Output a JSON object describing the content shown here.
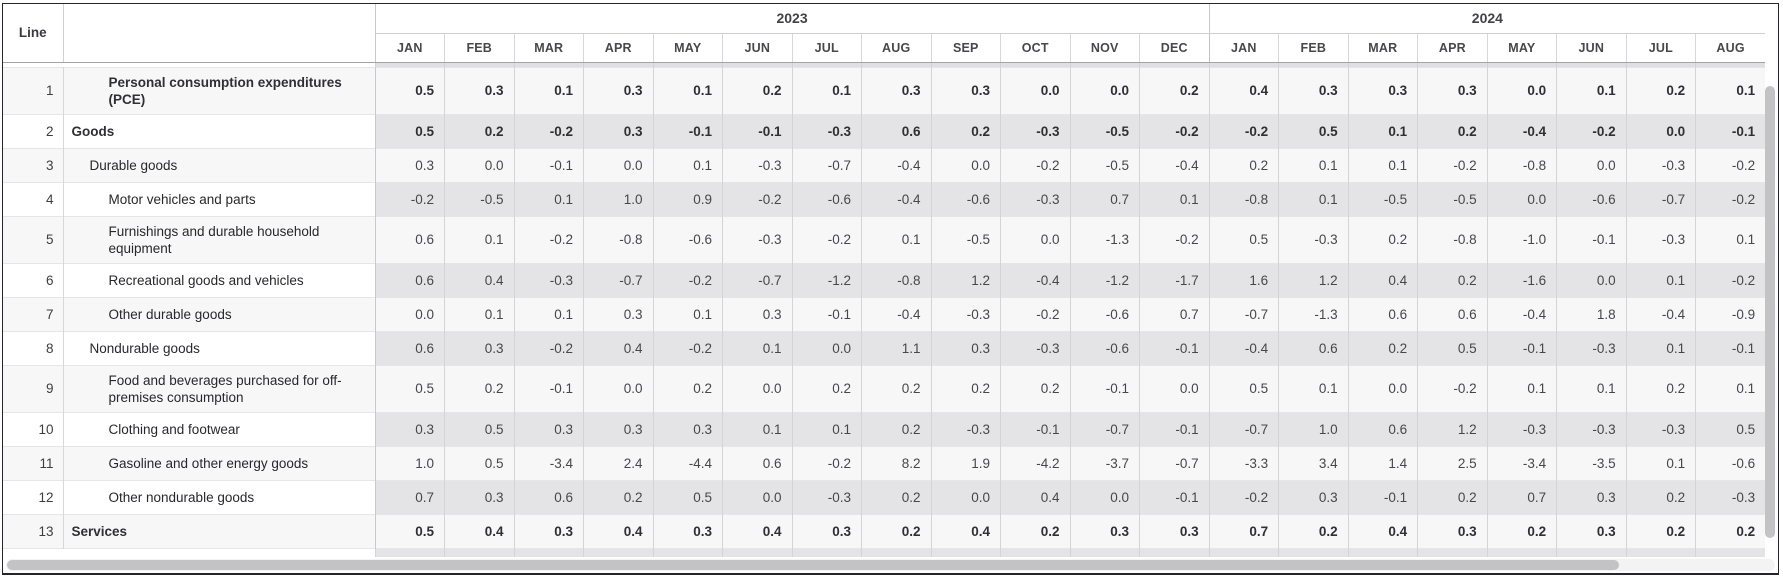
{
  "table": {
    "line_header": "Line",
    "year_groups": [
      {
        "year": "2023",
        "months": [
          "JAN",
          "FEB",
          "MAR",
          "APR",
          "MAY",
          "JUN",
          "JUL",
          "AUG",
          "SEP",
          "OCT",
          "NOV",
          "DEC"
        ]
      },
      {
        "year": "2024",
        "months": [
          "JAN",
          "FEB",
          "MAR",
          "APR",
          "MAY",
          "JUN",
          "JUL",
          "AUG"
        ]
      }
    ],
    "rows": [
      {
        "line": "1",
        "label": "Personal consumption expenditures (PCE)",
        "bold": true,
        "indent": 2,
        "values_2023": [
          "0.5",
          "0.3",
          "0.1",
          "0.3",
          "0.1",
          "0.2",
          "0.1",
          "0.3",
          "0.3",
          "0.0",
          "0.0",
          "0.2"
        ],
        "values_2024": [
          "0.4",
          "0.3",
          "0.3",
          "0.3",
          "0.0",
          "0.1",
          "0.2",
          "0.1"
        ]
      },
      {
        "line": "2",
        "label": "Goods",
        "bold": true,
        "indent": 0,
        "values_2023": [
          "0.5",
          "0.2",
          "-0.2",
          "0.3",
          "-0.1",
          "-0.1",
          "-0.3",
          "0.6",
          "0.2",
          "-0.3",
          "-0.5",
          "-0.2"
        ],
        "values_2024": [
          "-0.2",
          "0.5",
          "0.1",
          "0.2",
          "-0.4",
          "-0.2",
          "0.0",
          "-0.1"
        ]
      },
      {
        "line": "3",
        "label": "Durable goods",
        "bold": false,
        "indent": 1,
        "values_2023": [
          "0.3",
          "0.0",
          "-0.1",
          "0.0",
          "0.1",
          "-0.3",
          "-0.7",
          "-0.4",
          "0.0",
          "-0.2",
          "-0.5",
          "-0.4"
        ],
        "values_2024": [
          "0.2",
          "0.1",
          "0.1",
          "-0.2",
          "-0.8",
          "0.0",
          "-0.3",
          "-0.2"
        ]
      },
      {
        "line": "4",
        "label": "Motor vehicles and parts",
        "bold": false,
        "indent": 2,
        "values_2023": [
          "-0.2",
          "-0.5",
          "0.1",
          "1.0",
          "0.9",
          "-0.2",
          "-0.6",
          "-0.4",
          "-0.6",
          "-0.3",
          "0.7",
          "0.1"
        ],
        "values_2024": [
          "-0.8",
          "0.1",
          "-0.5",
          "-0.5",
          "0.0",
          "-0.6",
          "-0.7",
          "-0.2"
        ]
      },
      {
        "line": "5",
        "label": "Furnishings and durable household equipment",
        "bold": false,
        "indent": 2,
        "values_2023": [
          "0.6",
          "0.1",
          "-0.2",
          "-0.8",
          "-0.6",
          "-0.3",
          "-0.2",
          "0.1",
          "-0.5",
          "0.0",
          "-1.3",
          "-0.2"
        ],
        "values_2024": [
          "0.5",
          "-0.3",
          "0.2",
          "-0.8",
          "-1.0",
          "-0.1",
          "-0.3",
          "0.1"
        ]
      },
      {
        "line": "6",
        "label": "Recreational goods and vehicles",
        "bold": false,
        "indent": 2,
        "values_2023": [
          "0.6",
          "0.4",
          "-0.3",
          "-0.7",
          "-0.2",
          "-0.7",
          "-1.2",
          "-0.8",
          "1.2",
          "-0.4",
          "-1.2",
          "-1.7"
        ],
        "values_2024": [
          "1.6",
          "1.2",
          "0.4",
          "0.2",
          "-1.6",
          "0.0",
          "0.1",
          "-0.2"
        ]
      },
      {
        "line": "7",
        "label": "Other durable goods",
        "bold": false,
        "indent": 2,
        "values_2023": [
          "0.0",
          "0.1",
          "0.1",
          "0.3",
          "0.1",
          "0.3",
          "-0.1",
          "-0.4",
          "-0.3",
          "-0.2",
          "-0.6",
          "0.7"
        ],
        "values_2024": [
          "-0.7",
          "-1.3",
          "0.6",
          "0.6",
          "-0.4",
          "1.8",
          "-0.4",
          "-0.9"
        ]
      },
      {
        "line": "8",
        "label": "Nondurable goods",
        "bold": false,
        "indent": 1,
        "values_2023": [
          "0.6",
          "0.3",
          "-0.2",
          "0.4",
          "-0.2",
          "0.1",
          "0.0",
          "1.1",
          "0.3",
          "-0.3",
          "-0.6",
          "-0.1"
        ],
        "values_2024": [
          "-0.4",
          "0.6",
          "0.2",
          "0.5",
          "-0.1",
          "-0.3",
          "0.1",
          "-0.1"
        ]
      },
      {
        "line": "9",
        "label": "Food and beverages purchased for off-premises consumption",
        "bold": false,
        "indent": 2,
        "values_2023": [
          "0.5",
          "0.2",
          "-0.1",
          "0.0",
          "0.2",
          "0.0",
          "0.2",
          "0.2",
          "0.2",
          "0.2",
          "-0.1",
          "0.0"
        ],
        "values_2024": [
          "0.5",
          "0.1",
          "0.0",
          "-0.2",
          "0.1",
          "0.1",
          "0.2",
          "0.1"
        ]
      },
      {
        "line": "10",
        "label": "Clothing and footwear",
        "bold": false,
        "indent": 2,
        "values_2023": [
          "0.3",
          "0.5",
          "0.3",
          "0.3",
          "0.3",
          "0.1",
          "0.1",
          "0.2",
          "-0.3",
          "-0.1",
          "-0.7",
          "-0.1"
        ],
        "values_2024": [
          "-0.7",
          "1.0",
          "0.6",
          "1.2",
          "-0.3",
          "-0.3",
          "-0.3",
          "0.5"
        ]
      },
      {
        "line": "11",
        "label": "Gasoline and other energy goods",
        "bold": false,
        "indent": 2,
        "values_2023": [
          "1.0",
          "0.5",
          "-3.4",
          "2.4",
          "-4.4",
          "0.6",
          "-0.2",
          "8.2",
          "1.9",
          "-4.2",
          "-3.7",
          "-0.7"
        ],
        "values_2024": [
          "-3.3",
          "3.4",
          "1.4",
          "2.5",
          "-3.4",
          "-3.5",
          "0.1",
          "-0.6"
        ]
      },
      {
        "line": "12",
        "label": "Other nondurable goods",
        "bold": false,
        "indent": 2,
        "values_2023": [
          "0.7",
          "0.3",
          "0.6",
          "0.2",
          "0.5",
          "0.0",
          "-0.3",
          "0.2",
          "0.0",
          "0.4",
          "0.0",
          "-0.1"
        ],
        "values_2024": [
          "-0.2",
          "0.3",
          "-0.1",
          "0.2",
          "0.7",
          "0.3",
          "0.2",
          "-0.3"
        ]
      },
      {
        "line": "13",
        "label": "Services",
        "bold": true,
        "indent": 0,
        "values_2023": [
          "0.5",
          "0.4",
          "0.3",
          "0.4",
          "0.3",
          "0.4",
          "0.3",
          "0.2",
          "0.4",
          "0.2",
          "0.3",
          "0.3"
        ],
        "values_2024": [
          "0.7",
          "0.2",
          "0.4",
          "0.3",
          "0.2",
          "0.3",
          "0.2",
          "0.2"
        ]
      }
    ]
  },
  "colors": {
    "odd_row_bg": "#f7f7f8",
    "even_data_bg": "#e4e4e6",
    "grid_line": "#d4d4d6",
    "outer_border": "#26262a",
    "scrollbar_thumb": "#c3c3c6"
  }
}
